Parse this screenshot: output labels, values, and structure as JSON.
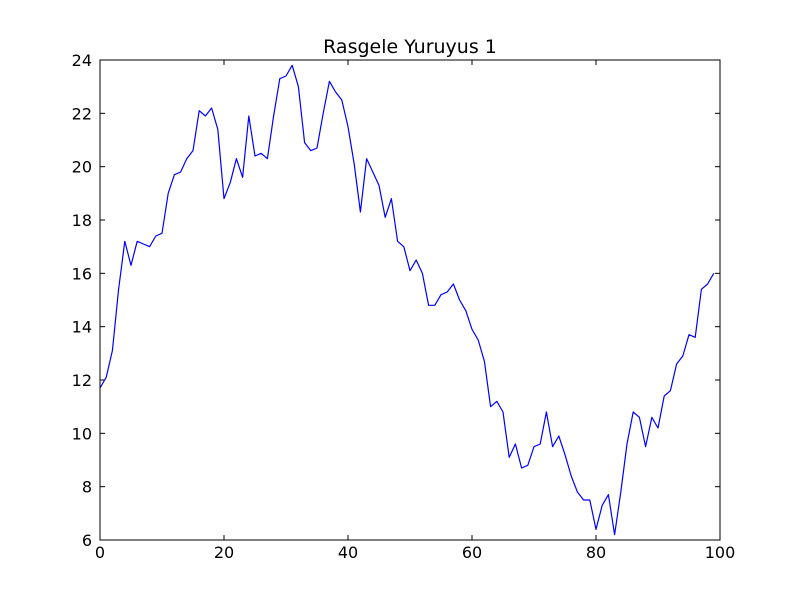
{
  "chart_data": {
    "type": "line",
    "title": "Rasgele Yuruyus 1",
    "xlabel": "",
    "ylabel": "",
    "xlim": [
      0,
      100
    ],
    "ylim": [
      6,
      24
    ],
    "xticks": [
      0,
      20,
      40,
      60,
      80,
      100
    ],
    "yticks": [
      6,
      8,
      10,
      12,
      14,
      16,
      18,
      20,
      22,
      24
    ],
    "grid": false,
    "series": [
      {
        "color": "#0000ff",
        "x": [
          0,
          1,
          2,
          3,
          4,
          5,
          6,
          7,
          8,
          9,
          10,
          11,
          12,
          13,
          14,
          15,
          16,
          17,
          18,
          19,
          20,
          21,
          22,
          23,
          24,
          25,
          26,
          27,
          28,
          29,
          30,
          31,
          32,
          33,
          34,
          35,
          36,
          37,
          38,
          39,
          40,
          41,
          42,
          43,
          44,
          45,
          46,
          47,
          48,
          49,
          50,
          51,
          52,
          53,
          54,
          55,
          56,
          57,
          58,
          59,
          60,
          61,
          62,
          63,
          64,
          65,
          66,
          67,
          68,
          69,
          70,
          71,
          72,
          73,
          74,
          75,
          76,
          77,
          78,
          79,
          80,
          81,
          82,
          83,
          84,
          85,
          86,
          87,
          88,
          89,
          90,
          91,
          92,
          93,
          94,
          95,
          96,
          97,
          98,
          99
        ],
        "y": [
          11.7,
          12.1,
          13.1,
          15.4,
          17.2,
          16.3,
          17.2,
          17.1,
          17.0,
          17.4,
          17.5,
          19.0,
          19.7,
          19.8,
          20.3,
          20.6,
          22.1,
          21.9,
          22.2,
          21.4,
          18.8,
          19.4,
          20.3,
          19.6,
          21.9,
          20.4,
          20.5,
          20.3,
          21.9,
          23.3,
          23.4,
          23.8,
          23.0,
          20.9,
          20.6,
          20.7,
          22.0,
          23.2,
          22.8,
          22.5,
          21.5,
          20.1,
          18.3,
          20.3,
          19.8,
          19.3,
          18.1,
          18.8,
          17.2,
          17.0,
          16.1,
          16.5,
          16.0,
          14.8,
          14.8,
          15.2,
          15.3,
          15.6,
          15.0,
          14.6,
          13.9,
          13.5,
          12.7,
          11.0,
          11.2,
          10.8,
          9.1,
          9.6,
          8.7,
          8.8,
          9.5,
          9.6,
          10.8,
          9.5,
          9.9,
          9.2,
          8.4,
          7.8,
          7.5,
          7.5,
          6.4,
          7.3,
          7.7,
          6.2,
          7.8,
          9.6,
          10.8,
          10.6,
          9.5,
          10.6,
          10.2,
          11.4,
          11.6,
          12.6,
          12.9,
          13.7,
          13.6,
          15.4,
          15.6,
          16.0
        ]
      }
    ]
  }
}
